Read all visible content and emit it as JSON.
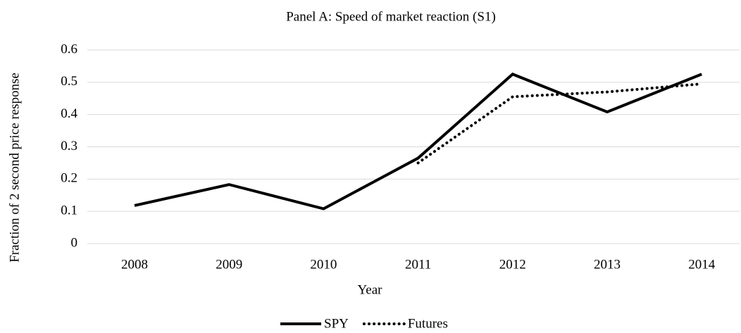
{
  "chart_data": {
    "type": "line",
    "title": "Panel A: Speed of market reaction (S1)",
    "xlabel": "Year",
    "ylabel": "Fraction of 2 second price response",
    "categories": [
      "2008",
      "2009",
      "2010",
      "2011",
      "2012",
      "2013",
      "2014"
    ],
    "series": [
      {
        "name": "SPY",
        "color": "#000000",
        "dash": "solid",
        "values": [
          0.118,
          0.183,
          0.108,
          0.265,
          0.525,
          0.408,
          0.525
        ]
      },
      {
        "name": "Futures",
        "color": "#000000",
        "dash": "dotted",
        "values": [
          null,
          null,
          null,
          0.25,
          0.455,
          0.47,
          0.495
        ]
      }
    ],
    "ylim": [
      0,
      0.6
    ],
    "yticks": [
      0,
      0.1,
      0.2,
      0.3,
      0.4,
      0.5,
      0.6
    ],
    "grid": true,
    "legend": "bottom"
  }
}
